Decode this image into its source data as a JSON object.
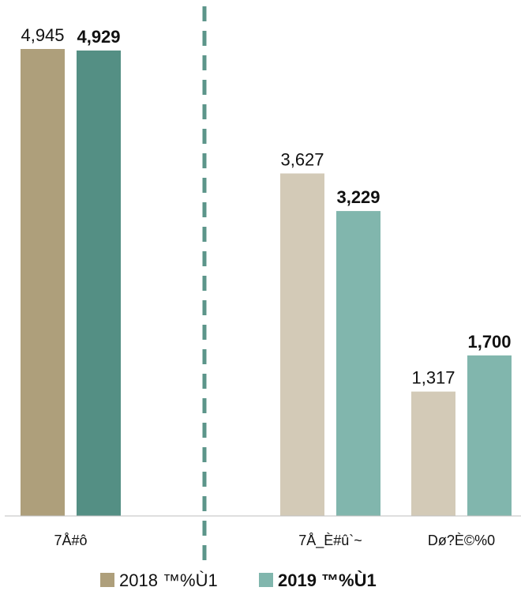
{
  "chart_data": {
    "type": "bar",
    "categories": [
      "7Å#ô",
      "7Å_È#û`~",
      "Dø?È©%0"
    ],
    "series": [
      {
        "name": "2018 ™%Ù1",
        "values": [
          4945,
          3627,
          1317
        ],
        "value_labels": [
          "4,945",
          "3,627",
          "1,317"
        ],
        "colors": [
          "#ae9f7b",
          "#d3cab7",
          "#d3cab7"
        ],
        "label_bold": false
      },
      {
        "name": "2019 ™%Ù1",
        "values": [
          4929,
          3229,
          1700
        ],
        "value_labels": [
          "4,929",
          "3,229",
          "1,700"
        ],
        "colors": [
          "#548f84",
          "#81b6ad",
          "#81b6ad"
        ],
        "label_bold": true
      }
    ],
    "ylim": [
      0,
      5000
    ],
    "grid": false,
    "legend_position": "bottom",
    "legend_colors": [
      "#ae9f7b",
      "#81b6ad"
    ],
    "divider": {
      "style": "dashed",
      "color": "#5c958a",
      "after_category": 0
    }
  }
}
